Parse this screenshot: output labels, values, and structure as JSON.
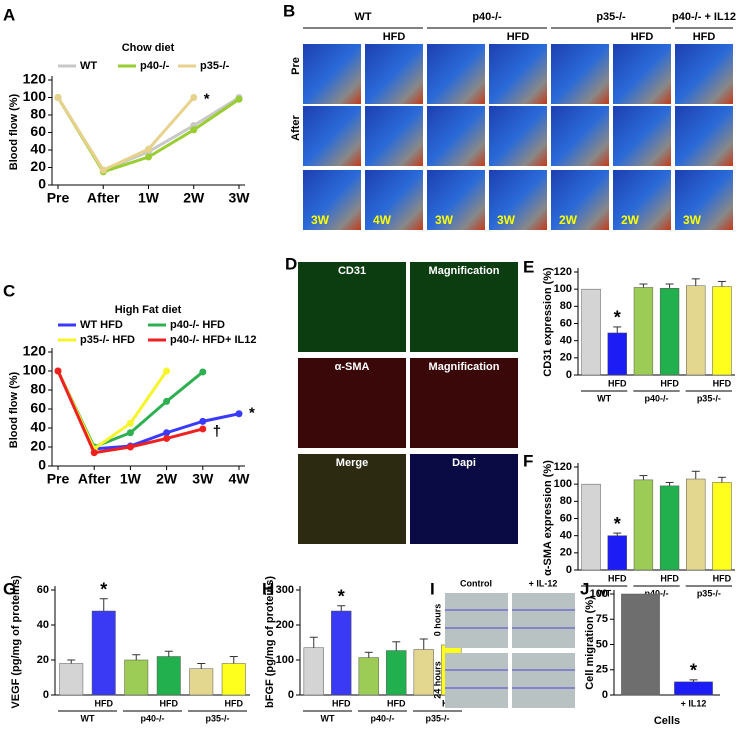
{
  "panel_letters": [
    "A",
    "B",
    "C",
    "D",
    "E",
    "F",
    "G",
    "H",
    "I",
    "J"
  ],
  "chart_data": [
    {
      "type": "line",
      "title": "Chow diet",
      "ylabel": "Blood flow (%)",
      "categories": [
        "Pre",
        "After",
        "1W",
        "2W",
        "3W"
      ],
      "ylim": [
        0,
        120
      ],
      "yticks": [
        0,
        20,
        40,
        60,
        80,
        100,
        120
      ],
      "series": [
        {
          "name": "WT",
          "color": "#c8c8c8",
          "values": [
            100,
            17,
            38,
            68,
            100
          ]
        },
        {
          "name": "p40-/-",
          "color": "#9acd32",
          "values": [
            100,
            15,
            32,
            63,
            98
          ]
        },
        {
          "name": "p35-/-",
          "color": "#e6d28c",
          "values": [
            100,
            17,
            41,
            100,
            null
          ]
        }
      ],
      "annotations": [
        "*"
      ]
    },
    {
      "type": "line",
      "title": "High Fat diet",
      "ylabel": "Blood flow (%)",
      "categories": [
        "Pre",
        "After",
        "1W",
        "2W",
        "3W",
        "4W"
      ],
      "ylim": [
        0,
        120
      ],
      "yticks": [
        0,
        20,
        40,
        60,
        80,
        100,
        120
      ],
      "series": [
        {
          "name": "WT HFD",
          "color": "#3a3aff",
          "values": [
            100,
            18,
            21,
            35,
            47,
            55
          ]
        },
        {
          "name": "p40-/- HFD",
          "color": "#2eb050",
          "values": [
            100,
            20,
            35,
            68,
            99,
            null
          ]
        },
        {
          "name": "p35-/- HFD",
          "color": "#f5f52a",
          "values": [
            100,
            18,
            45,
            100,
            null,
            null
          ]
        },
        {
          "name": "p40-/- HFD+ IL12",
          "color": "#ee2020",
          "values": [
            100,
            14,
            20,
            29,
            39,
            null
          ]
        }
      ],
      "annotations": [
        "*",
        "†"
      ]
    },
    {
      "type": "bar",
      "ylabel": "CD31 expression (%)",
      "categories": [
        null,
        "HFD",
        null,
        "HFD",
        null,
        "HFD"
      ],
      "groups": [
        "WT",
        "p40-/-",
        "p35-/-"
      ],
      "colors": [
        "#d4d4d4",
        "#1c1cf5",
        "#9ccc55",
        "#22b04e",
        "#e3d68e",
        "#ffff1e"
      ],
      "values": [
        100,
        49,
        102,
        101,
        104,
        103
      ],
      "errors": [
        0,
        7,
        4,
        5,
        8,
        6
      ],
      "ylim": [
        0,
        120
      ],
      "yticks": [
        0,
        20,
        40,
        60,
        80,
        100,
        120
      ],
      "annotations": [
        "*"
      ]
    },
    {
      "type": "bar",
      "ylabel": "α-SMA expression (%)",
      "categories": [
        null,
        "HFD",
        null,
        "HFD",
        null,
        "HFD"
      ],
      "groups": [
        "WT",
        "p40-/-",
        "p35-/-"
      ],
      "colors": [
        "#d4d4d4",
        "#1c1cf5",
        "#9ccc55",
        "#22b04e",
        "#e3d68e",
        "#ffff1e"
      ],
      "values": [
        100,
        40,
        105,
        98,
        106,
        102
      ],
      "errors": [
        0,
        3,
        5,
        4,
        9,
        6
      ],
      "ylim": [
        0,
        120
      ],
      "yticks": [
        0,
        20,
        40,
        60,
        80,
        100,
        120
      ],
      "annotations": [
        "*"
      ]
    },
    {
      "type": "bar",
      "ylabel": "VEGF (pg/mg of proteins)",
      "categories": [
        null,
        "HFD",
        null,
        "HFD",
        null,
        "HFD"
      ],
      "groups": [
        "WT",
        "p40-/-",
        "p35-/-"
      ],
      "colors": [
        "#d4d4d4",
        "#3a3af5",
        "#9ccc55",
        "#22b04e",
        "#e3d68e",
        "#ffff1e"
      ],
      "values": [
        18,
        48,
        20,
        22,
        15,
        18
      ],
      "errors": [
        2,
        7,
        3,
        3,
        3,
        4
      ],
      "ylim": [
        0,
        60
      ],
      "yticks": [
        0,
        20,
        40,
        60
      ],
      "annotations": [
        "*"
      ]
    },
    {
      "type": "bar",
      "ylabel": "bFGF (pg/mg of proteins)",
      "categories": [
        null,
        "HFD",
        null,
        "HFD",
        null,
        "HFD"
      ],
      "groups": [
        "WT",
        "p40-/-",
        "p35-/-"
      ],
      "colors": [
        "#d4d4d4",
        "#3a3af5",
        "#9ccc55",
        "#22b04e",
        "#e3d68e",
        "#ffff1e"
      ],
      "values": [
        135,
        240,
        107,
        127,
        130,
        143
      ],
      "errors": [
        30,
        15,
        15,
        25,
        30,
        18
      ],
      "ylim": [
        0,
        300
      ],
      "yticks": [
        0,
        100,
        200,
        300
      ],
      "annotations": [
        "*"
      ]
    },
    {
      "type": "bar",
      "ylabel": "Cell migration (%)",
      "xlabel": "Cells",
      "categories": [
        null,
        "+ IL12"
      ],
      "colors": [
        "#6e6e6e",
        "#1c1cf5"
      ],
      "values": [
        100,
        13
      ],
      "errors": [
        0,
        2
      ],
      "ylim": [
        0,
        100
      ],
      "yticks": [
        0,
        25,
        50,
        75,
        100
      ],
      "annotations": [
        "*"
      ]
    }
  ],
  "image_panels": {
    "B": {
      "column_labels": [
        "WT",
        "p40-/-",
        "p35-/-",
        "p40-/- + IL12"
      ],
      "hfd_labels": [
        "HFD",
        "HFD",
        "HFD",
        "HFD"
      ],
      "row_labels": [
        "Pre",
        "After"
      ],
      "time_labels": [
        "3W",
        "4W",
        "3W",
        "3W",
        "2W",
        "2W",
        "3W"
      ]
    },
    "D": {
      "labels": [
        "CD31",
        "Magnification",
        "α-SMA",
        "Magnification",
        "Merge",
        "Dapi"
      ]
    },
    "I": {
      "column_labels": [
        "Control",
        "+ IL-12"
      ],
      "row_labels": [
        "0 hours",
        "24 hours"
      ]
    }
  }
}
